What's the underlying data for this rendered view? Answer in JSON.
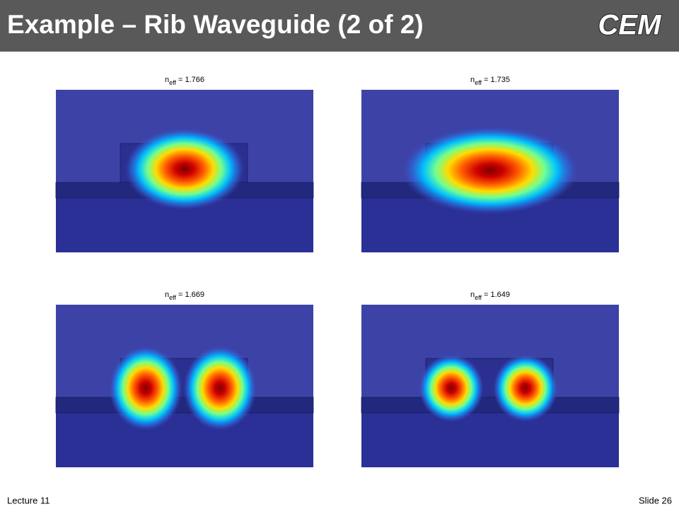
{
  "header": {
    "title": "Example – Rib Waveguide (2 of 2)",
    "logo": "CEM"
  },
  "panels": [
    {
      "symbol": "n",
      "subscript": "eff",
      "text": "= 1.766"
    },
    {
      "symbol": "n",
      "subscript": "eff",
      "text": "= 1.735"
    },
    {
      "symbol": "n",
      "subscript": "eff",
      "text": "= 1.669"
    },
    {
      "symbol": "n",
      "subscript": "eff",
      "text": "= 1.649"
    }
  ],
  "footer": {
    "left": "Lecture 11",
    "right": "Slide 26"
  }
}
